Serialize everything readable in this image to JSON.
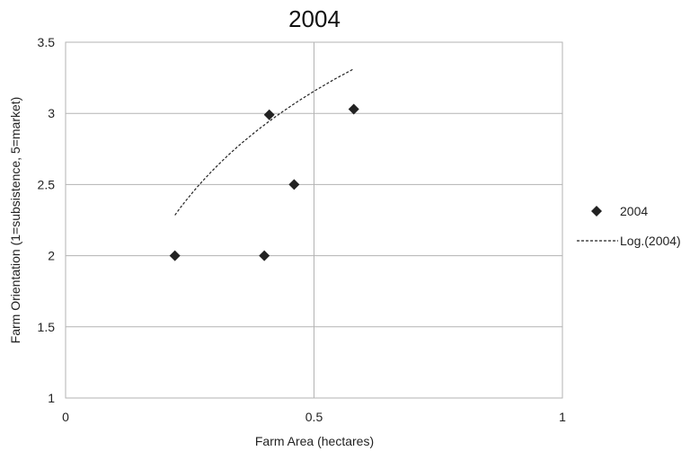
{
  "chart_data": {
    "type": "scatter",
    "title": "2004",
    "xlabel": "Farm Area (hectares)",
    "ylabel": "Farm Orientation (1=subsistence, 5=market)",
    "xlim": [
      0,
      1
    ],
    "ylim": [
      1,
      3.5
    ],
    "xticks": [
      0,
      0.5,
      1
    ],
    "yticks": [
      1,
      1.5,
      2,
      2.5,
      3,
      3.5
    ],
    "xtick_labels": [
      "0",
      "0.5",
      "1"
    ],
    "ytick_labels": [
      "1",
      "1.5",
      "2",
      "2.5",
      "3",
      "3.5"
    ],
    "grid": true,
    "legend_position": "right",
    "series": [
      {
        "name": "2004",
        "marker": "diamond",
        "color": "#222222",
        "points": [
          {
            "x": 0.22,
            "y": 2.0
          },
          {
            "x": 0.4,
            "y": 2.0
          },
          {
            "x": 0.41,
            "y": 2.99
          },
          {
            "x": 0.46,
            "y": 2.5
          },
          {
            "x": 0.58,
            "y": 3.03
          }
        ]
      }
    ],
    "trendline": {
      "name": "Log.(2004)",
      "type": "logarithmic",
      "style": "dashed",
      "color": "#222222",
      "x_range": [
        0.22,
        0.58
      ],
      "a": 3.89,
      "b": 1.06
    }
  }
}
